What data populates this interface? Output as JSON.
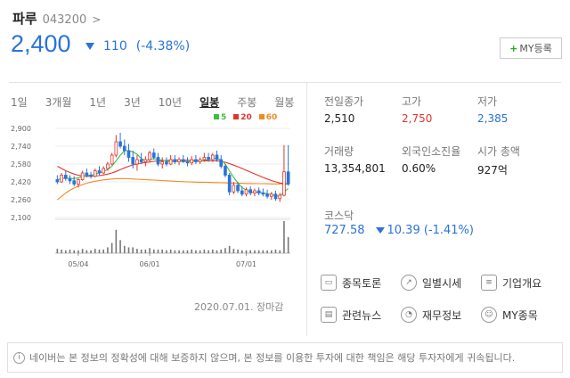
{
  "header": {
    "name": "파루",
    "code": "043200",
    "chevron": ">",
    "price": "2,400",
    "change_amount": "110",
    "change_pct": "(-4.38%)",
    "my_button": "MY등록",
    "my_button_plus": "+"
  },
  "tabs": [
    "1일",
    "3개월",
    "1년",
    "3년",
    "10년",
    "일봉",
    "주봉",
    "월봉"
  ],
  "active_tab": "일봉",
  "legend": [
    {
      "label": "5",
      "color": "#3fbf3f"
    },
    {
      "label": "20",
      "color": "#e0352f"
    },
    {
      "label": "60",
      "color": "#f08a24"
    }
  ],
  "chart_data": {
    "type": "candlestick",
    "y_ticks": [
      "2,900",
      "2,740",
      "2,580",
      "2,420",
      "2,260",
      "2,100"
    ],
    "ylim": [
      2100,
      2900
    ],
    "x_ticks": [
      "05/04",
      "06/01",
      "07/01"
    ],
    "colors": {
      "up": "#e0352f",
      "down": "#2a73d9",
      "ma5": "#3fbf3f",
      "ma20": "#e0352f",
      "ma60": "#f08a24"
    },
    "candles": [
      {
        "o": 2440,
        "h": 2480,
        "l": 2400,
        "c": 2420
      },
      {
        "o": 2420,
        "h": 2500,
        "l": 2410,
        "c": 2480
      },
      {
        "o": 2480,
        "h": 2520,
        "l": 2430,
        "c": 2450
      },
      {
        "o": 2450,
        "h": 2480,
        "l": 2400,
        "c": 2430
      },
      {
        "o": 2430,
        "h": 2470,
        "l": 2380,
        "c": 2400
      },
      {
        "o": 2400,
        "h": 2450,
        "l": 2370,
        "c": 2440
      },
      {
        "o": 2440,
        "h": 2520,
        "l": 2430,
        "c": 2500
      },
      {
        "o": 2500,
        "h": 2540,
        "l": 2460,
        "c": 2480
      },
      {
        "o": 2480,
        "h": 2510,
        "l": 2450,
        "c": 2470
      },
      {
        "o": 2470,
        "h": 2540,
        "l": 2460,
        "c": 2520
      },
      {
        "o": 2520,
        "h": 2560,
        "l": 2480,
        "c": 2500
      },
      {
        "o": 2500,
        "h": 2560,
        "l": 2490,
        "c": 2540
      },
      {
        "o": 2540,
        "h": 2600,
        "l": 2520,
        "c": 2580
      },
      {
        "o": 2580,
        "h": 2680,
        "l": 2570,
        "c": 2660
      },
      {
        "o": 2660,
        "h": 2840,
        "l": 2640,
        "c": 2780
      },
      {
        "o": 2780,
        "h": 2860,
        "l": 2720,
        "c": 2740
      },
      {
        "o": 2740,
        "h": 2800,
        "l": 2660,
        "c": 2700
      },
      {
        "o": 2700,
        "h": 2760,
        "l": 2600,
        "c": 2640
      },
      {
        "o": 2640,
        "h": 2700,
        "l": 2540,
        "c": 2580
      },
      {
        "o": 2580,
        "h": 2660,
        "l": 2520,
        "c": 2620
      },
      {
        "o": 2620,
        "h": 2680,
        "l": 2580,
        "c": 2600
      },
      {
        "o": 2600,
        "h": 2650,
        "l": 2560,
        "c": 2620
      },
      {
        "o": 2620,
        "h": 2700,
        "l": 2600,
        "c": 2680
      },
      {
        "o": 2680,
        "h": 2720,
        "l": 2620,
        "c": 2640
      },
      {
        "o": 2640,
        "h": 2680,
        "l": 2560,
        "c": 2580
      },
      {
        "o": 2580,
        "h": 2640,
        "l": 2540,
        "c": 2600
      },
      {
        "o": 2600,
        "h": 2640,
        "l": 2560,
        "c": 2580
      },
      {
        "o": 2580,
        "h": 2660,
        "l": 2570,
        "c": 2620
      },
      {
        "o": 2620,
        "h": 2660,
        "l": 2580,
        "c": 2600
      },
      {
        "o": 2600,
        "h": 2640,
        "l": 2570,
        "c": 2620
      },
      {
        "o": 2620,
        "h": 2660,
        "l": 2590,
        "c": 2600
      },
      {
        "o": 2600,
        "h": 2640,
        "l": 2560,
        "c": 2590
      },
      {
        "o": 2590,
        "h": 2650,
        "l": 2570,
        "c": 2620
      },
      {
        "o": 2620,
        "h": 2660,
        "l": 2580,
        "c": 2600
      },
      {
        "o": 2600,
        "h": 2640,
        "l": 2580,
        "c": 2620
      },
      {
        "o": 2620,
        "h": 2680,
        "l": 2600,
        "c": 2640
      },
      {
        "o": 2640,
        "h": 2680,
        "l": 2600,
        "c": 2620
      },
      {
        "o": 2620,
        "h": 2680,
        "l": 2600,
        "c": 2660
      },
      {
        "o": 2660,
        "h": 2700,
        "l": 2600,
        "c": 2620
      },
      {
        "o": 2620,
        "h": 2660,
        "l": 2540,
        "c": 2560
      },
      {
        "o": 2560,
        "h": 2580,
        "l": 2460,
        "c": 2480
      },
      {
        "o": 2480,
        "h": 2500,
        "l": 2300,
        "c": 2330
      },
      {
        "o": 2330,
        "h": 2420,
        "l": 2310,
        "c": 2390
      },
      {
        "o": 2390,
        "h": 2420,
        "l": 2320,
        "c": 2340
      },
      {
        "o": 2340,
        "h": 2380,
        "l": 2290,
        "c": 2310
      },
      {
        "o": 2310,
        "h": 2370,
        "l": 2290,
        "c": 2350
      },
      {
        "o": 2350,
        "h": 2380,
        "l": 2300,
        "c": 2320
      },
      {
        "o": 2320,
        "h": 2360,
        "l": 2290,
        "c": 2340
      },
      {
        "o": 2340,
        "h": 2370,
        "l": 2300,
        "c": 2320
      },
      {
        "o": 2320,
        "h": 2360,
        "l": 2290,
        "c": 2310
      },
      {
        "o": 2310,
        "h": 2350,
        "l": 2270,
        "c": 2290
      },
      {
        "o": 2290,
        "h": 2330,
        "l": 2260,
        "c": 2310
      },
      {
        "o": 2310,
        "h": 2340,
        "l": 2250,
        "c": 2270
      },
      {
        "o": 2270,
        "h": 2320,
        "l": 2240,
        "c": 2300
      },
      {
        "o": 2300,
        "h": 2750,
        "l": 2290,
        "c": 2510
      },
      {
        "o": 2510,
        "h": 2750,
        "l": 2385,
        "c": 2400
      }
    ],
    "ma5": [
      2440,
      2450,
      2455,
      2452,
      2450,
      2456,
      2470,
      2478,
      2480,
      2490,
      2500,
      2514,
      2530,
      2560,
      2610,
      2660,
      2700,
      2700,
      2690,
      2668,
      2630,
      2610,
      2620,
      2630,
      2620,
      2616,
      2608,
      2600,
      2600,
      2604,
      2606,
      2602,
      2604,
      2606,
      2606,
      2614,
      2620,
      2628,
      2630,
      2618,
      2580,
      2520,
      2460,
      2410,
      2370,
      2346,
      2330,
      2324,
      2326,
      2322,
      2314,
      2306,
      2296,
      2290,
      2330,
      2360
    ],
    "ma20": [
      2560,
      2540,
      2520,
      2505,
      2490,
      2480,
      2474,
      2470,
      2470,
      2472,
      2476,
      2482,
      2490,
      2500,
      2514,
      2530,
      2546,
      2560,
      2572,
      2580,
      2588,
      2594,
      2598,
      2604,
      2608,
      2610,
      2612,
      2614,
      2615,
      2616,
      2616,
      2614,
      2612,
      2611,
      2610,
      2609,
      2608,
      2608,
      2608,
      2604,
      2596,
      2584,
      2570,
      2556,
      2540,
      2524,
      2508,
      2492,
      2476,
      2460,
      2446,
      2432,
      2420,
      2410,
      2404,
      2400
    ],
    "ma60": [
      2260,
      2290,
      2320,
      2345,
      2365,
      2382,
      2396,
      2408,
      2418,
      2426,
      2432,
      2438,
      2442,
      2446,
      2448,
      2450,
      2450,
      2448,
      2446,
      2444,
      2442,
      2440,
      2438,
      2436,
      2434,
      2432,
      2430,
      2428,
      2426,
      2424,
      2422,
      2420,
      2419,
      2418,
      2417,
      2416,
      2415,
      2414,
      2413,
      2412,
      2411,
      2410,
      2409,
      2408,
      2407,
      2406,
      2405,
      2405,
      2404,
      2404,
      2403,
      2402,
      2402,
      2402,
      2402,
      2402
    ],
    "volume": [
      6,
      5,
      4,
      5,
      4,
      4,
      6,
      4,
      4,
      6,
      5,
      5,
      8,
      14,
      32,
      18,
      10,
      8,
      8,
      6,
      5,
      5,
      7,
      5,
      5,
      5,
      4,
      5,
      4,
      4,
      4,
      4,
      5,
      4,
      4,
      5,
      4,
      5,
      4,
      5,
      7,
      10,
      6,
      5,
      4,
      4,
      4,
      4,
      4,
      4,
      4,
      4,
      5,
      4,
      44,
      22
    ]
  },
  "as_of": "2020.07.01. 장마감",
  "stats": {
    "prev_close_label": "전일종가",
    "prev_close": "2,510",
    "high_label": "고가",
    "high": "2,750",
    "low_label": "저가",
    "low": "2,385",
    "volume_label": "거래량",
    "volume": "13,354,801",
    "foreign_label": "외국인소진율",
    "foreign": "0.60%",
    "mcap_label": "시가 총액",
    "mcap": "927억"
  },
  "kosdaq": {
    "label": "코스닥",
    "value": "727.58",
    "change": "10.39 (-1.41%)"
  },
  "links": [
    "종목토론",
    "일별시세",
    "기업개요",
    "관련뉴스",
    "재무정보",
    "MY종목"
  ],
  "notice": "네이버는 본 정보의 정확성에 대해 보증하지 않으며, 본 정보를 이용한 투자에 대한 책임은 해당 투자자에게 귀속됩니다."
}
